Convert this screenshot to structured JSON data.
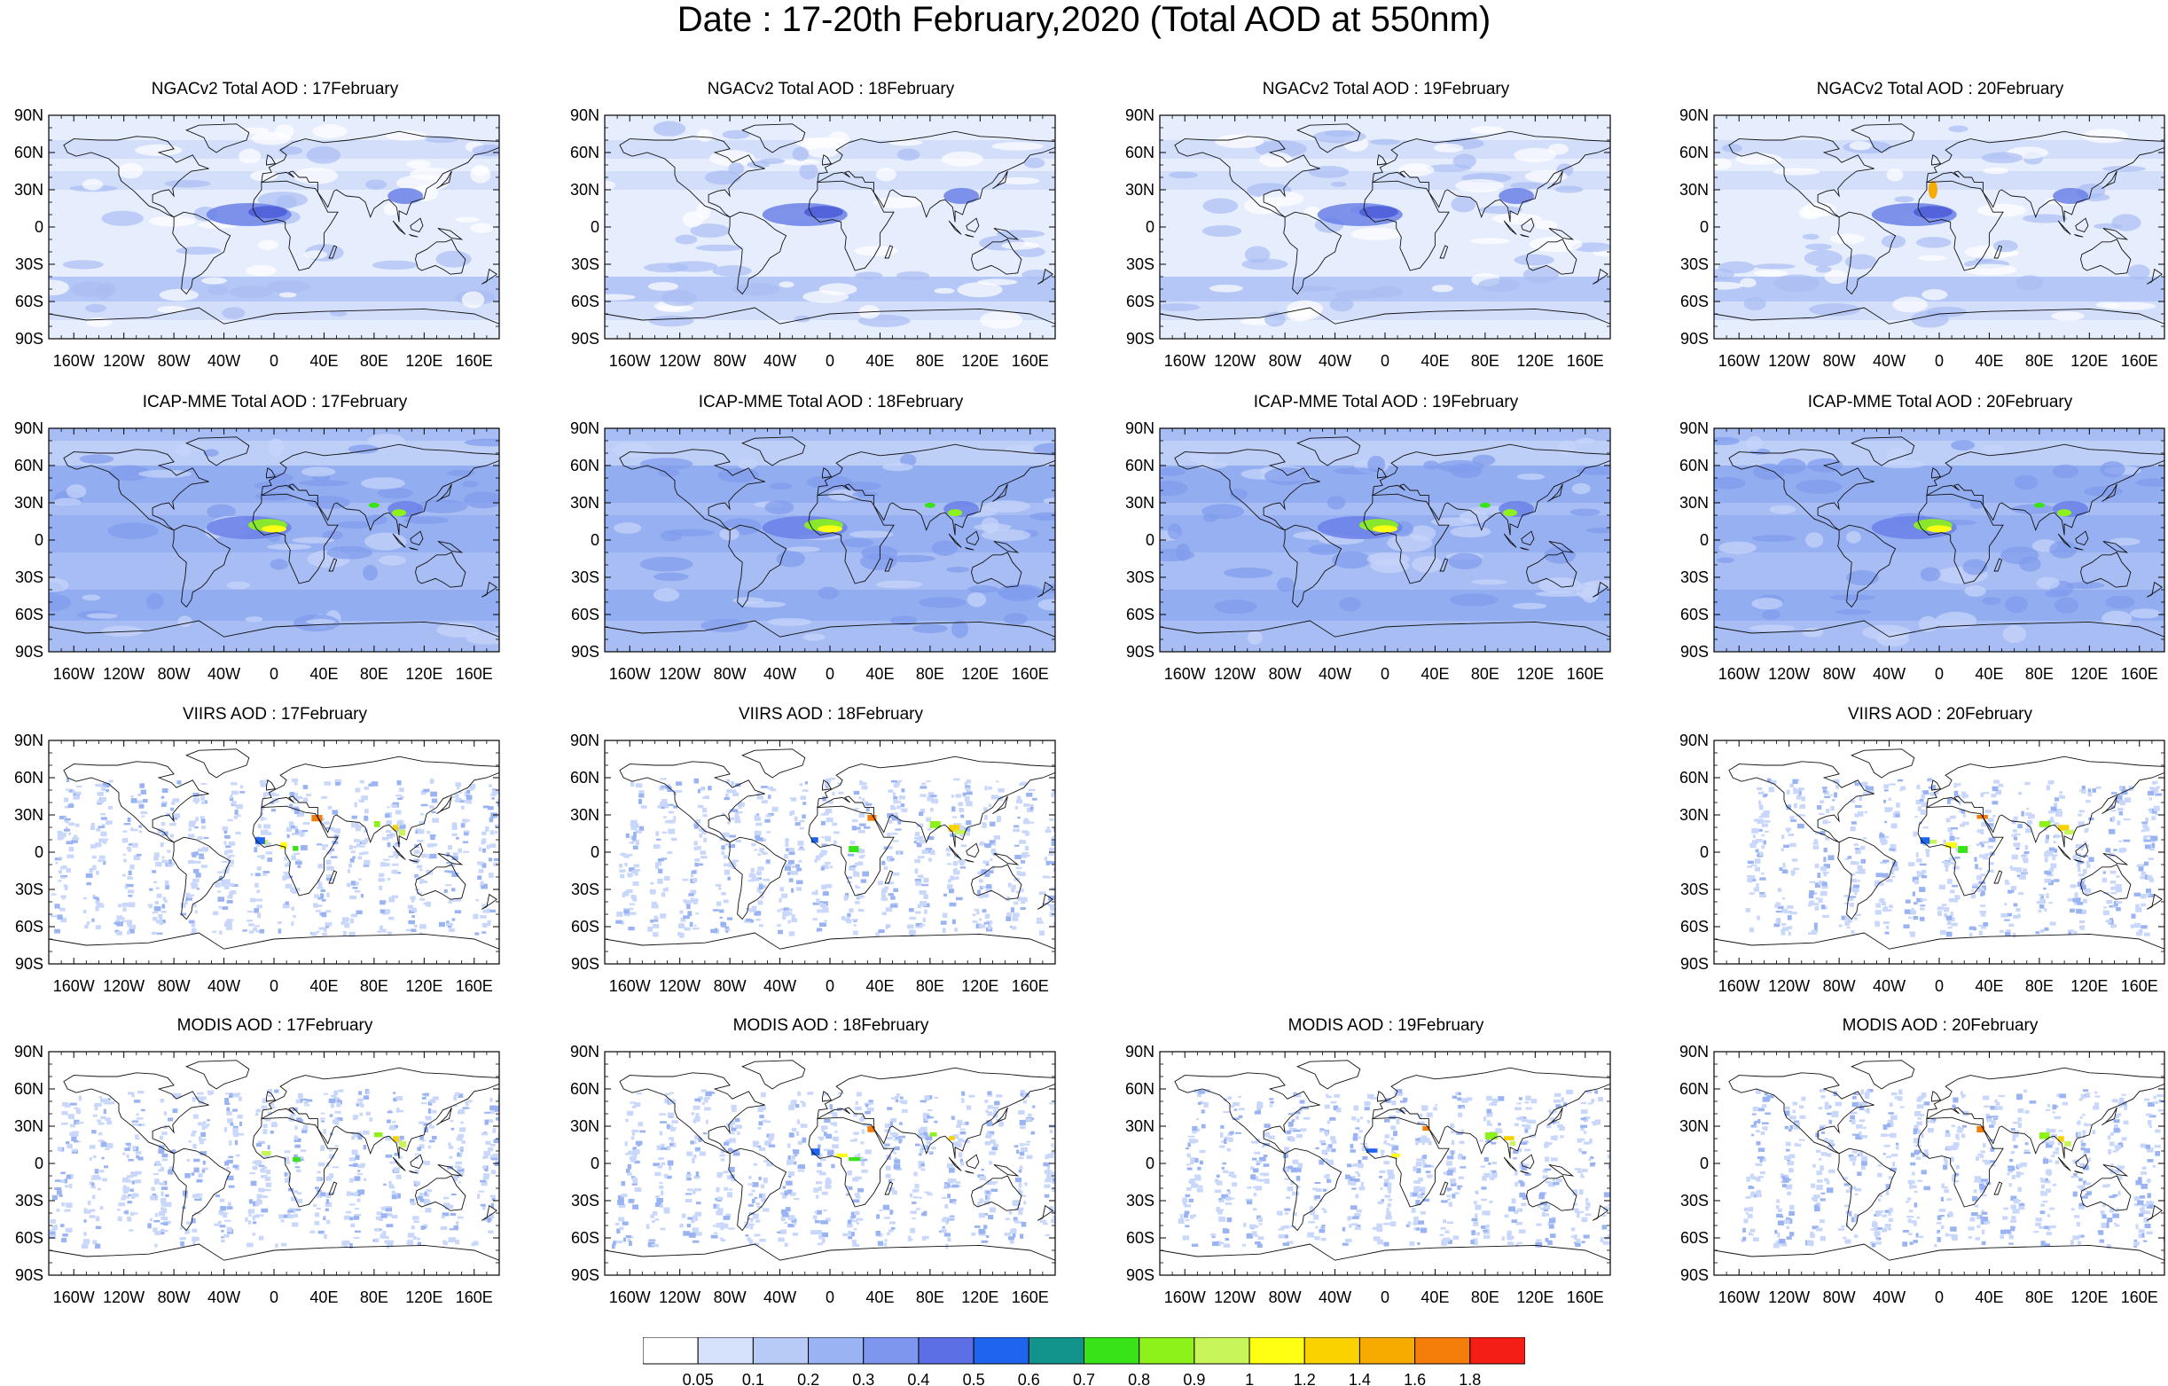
{
  "title": "Date : 17-20th February,2020 (Total AOD at 550nm)",
  "lat_ticks": [
    "90N",
    "60N",
    "30N",
    "0",
    "30S",
    "60S",
    "90S"
  ],
  "lon_ticks": [
    "160W",
    "120W",
    "80W",
    "40W",
    "0",
    "40E",
    "80E",
    "120E",
    "160E"
  ],
  "rows": [
    {
      "product": "NGACv2 Total AOD",
      "panels": [
        {
          "title": "NGACv2 Total AOD : 17February",
          "present": true
        },
        {
          "title": "NGACv2 Total AOD : 18February",
          "present": true
        },
        {
          "title": "NGACv2 Total AOD : 19February",
          "present": true
        },
        {
          "title": "NGACv2 Total AOD : 20February",
          "present": true
        }
      ]
    },
    {
      "product": "ICAP-MME Total AOD",
      "panels": [
        {
          "title": "ICAP-MME Total AOD : 17February",
          "present": true
        },
        {
          "title": "ICAP-MME Total AOD : 18February",
          "present": true
        },
        {
          "title": "ICAP-MME Total AOD : 19February",
          "present": true
        },
        {
          "title": "ICAP-MME Total AOD : 20February",
          "present": true
        }
      ]
    },
    {
      "product": "VIIRS AOD",
      "panels": [
        {
          "title": "VIIRS AOD : 17February",
          "present": true
        },
        {
          "title": "VIIRS AOD : 18February",
          "present": true
        },
        {
          "title": "",
          "present": false
        },
        {
          "title": "VIIRS AOD : 20February",
          "present": true
        }
      ]
    },
    {
      "product": "MODIS AOD",
      "panels": [
        {
          "title": "MODIS AOD : 17February",
          "present": true
        },
        {
          "title": "MODIS AOD : 18February",
          "present": true
        },
        {
          "title": "MODIS AOD : 19February",
          "present": true
        },
        {
          "title": "MODIS AOD : 20February",
          "present": true
        }
      ]
    }
  ],
  "colorbar": {
    "labels": [
      "0.05",
      "0.1",
      "0.2",
      "0.3",
      "0.4",
      "0.5",
      "0.6",
      "0.7",
      "0.8",
      "0.9",
      "1",
      "1.2",
      "1.4",
      "1.6",
      "1.8"
    ],
    "colors": [
      "#ffffff",
      "#d6e2fb",
      "#b8cbf7",
      "#9ab3f2",
      "#7f96ee",
      "#5c6fe4",
      "#1e64ee",
      "#12948c",
      "#38e318",
      "#8cf21a",
      "#c8f55a",
      "#ffff14",
      "#fad200",
      "#f7aa00",
      "#f57d0a",
      "#f51e14"
    ]
  },
  "field_colors": {
    "ocean_light": "#e6eefd",
    "field_low": "#cdd9f9",
    "field_mid": "#a9bdf4",
    "icap_base": "#a7bdf3"
  }
}
